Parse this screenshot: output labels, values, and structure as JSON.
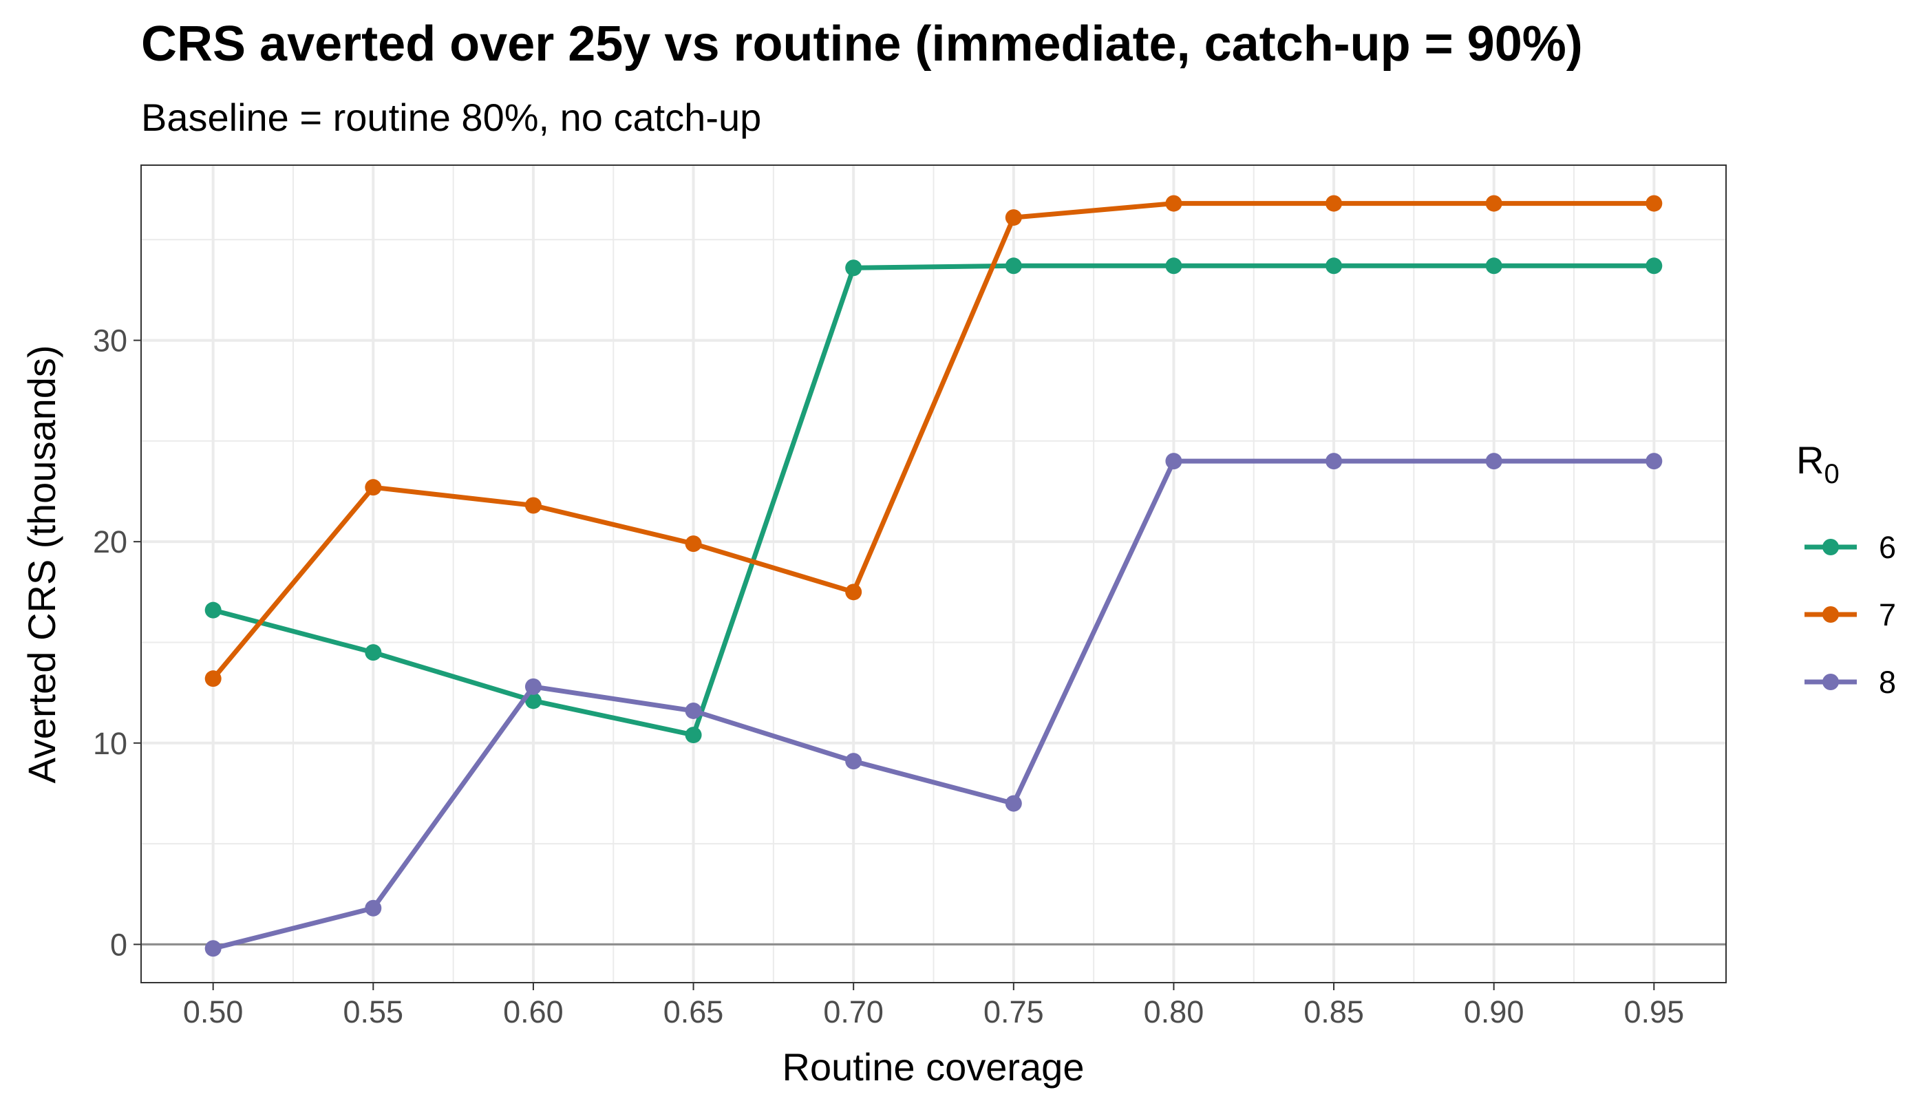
{
  "chart_data": {
    "type": "line",
    "title": "CRS averted over 25y vs routine (immediate, catch-up = 90%)",
    "subtitle": "Baseline = routine 80%, no catch-up",
    "xlabel": "Routine coverage",
    "ylabel": "Averted CRS (thousands)",
    "x": [
      0.5,
      0.55,
      0.6,
      0.65,
      0.7,
      0.75,
      0.8,
      0.85,
      0.9,
      0.95
    ],
    "x_tick_labels": [
      "0.50",
      "0.55",
      "0.60",
      "0.65",
      "0.70",
      "0.75",
      "0.80",
      "0.85",
      "0.90",
      "0.95"
    ],
    "y_ticks": [
      0,
      10,
      20,
      30
    ],
    "y_tick_labels": [
      "0",
      "10",
      "20",
      "30"
    ],
    "xlim": [
      0.4775,
      0.9725
    ],
    "ylim": [
      -1.9,
      38.7
    ],
    "grid": true,
    "reference_line_y": 0,
    "legend": {
      "title": "R",
      "title_subscript": "0",
      "position": "right"
    },
    "series": [
      {
        "name": "6",
        "color": "#1b9e77",
        "values": [
          16.6,
          14.5,
          12.1,
          10.4,
          33.6,
          33.7,
          33.7,
          33.7,
          33.7,
          33.7
        ]
      },
      {
        "name": "7",
        "color": "#d95f02",
        "values": [
          13.2,
          22.7,
          21.8,
          19.9,
          17.5,
          36.1,
          36.8,
          36.8,
          36.8,
          36.8
        ]
      },
      {
        "name": "8",
        "color": "#7570b3",
        "values": [
          -0.2,
          1.8,
          12.8,
          11.6,
          9.1,
          7.0,
          24.0,
          24.0,
          24.0,
          24.0
        ]
      }
    ],
    "colors": {
      "grid": "#ebebeb",
      "panel_border": "#333333",
      "zero_line": "#8c8c8c",
      "tick_mark": "#333333"
    }
  }
}
